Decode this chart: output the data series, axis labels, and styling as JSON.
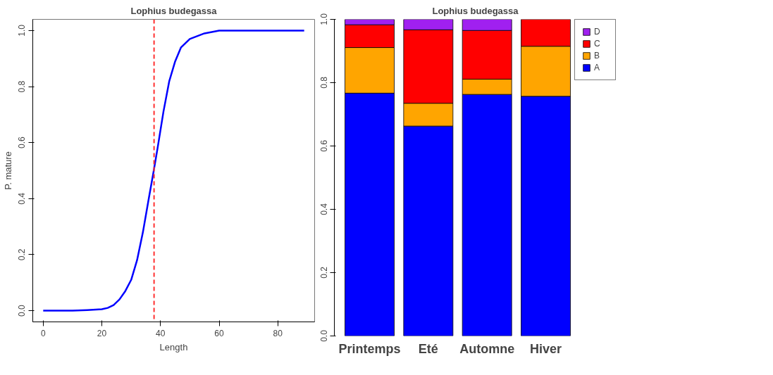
{
  "chart_data": [
    {
      "type": "line",
      "title": "Lophius budegassa",
      "xlabel": "Length",
      "ylabel": "P. mature",
      "x": [
        0,
        10,
        15,
        20,
        22,
        24,
        26,
        28,
        30,
        32,
        34,
        36,
        37.7,
        39,
        41,
        43,
        45,
        47,
        50,
        55,
        60,
        70,
        89
      ],
      "series": [
        {
          "color": "#0000ff",
          "values": [
            0,
            0,
            0.002,
            0.005,
            0.01,
            0.02,
            0.04,
            0.07,
            0.11,
            0.18,
            0.28,
            0.4,
            0.5,
            0.58,
            0.71,
            0.82,
            0.89,
            0.94,
            0.97,
            0.99,
            1.0,
            1.0,
            1.0
          ]
        }
      ],
      "xlim": [
        -3.56,
        92.56
      ],
      "ylim": [
        -0.04,
        1.04
      ],
      "xticks": [
        0,
        20,
        40,
        60,
        80
      ],
      "yticks": [
        {
          "value": 0,
          "label": "0.0"
        },
        {
          "value": 0.2,
          "label": "0.2"
        },
        {
          "value": 0.4,
          "label": "0.4"
        },
        {
          "value": 0.6,
          "label": "0.6"
        },
        {
          "value": 0.8,
          "label": "0.8"
        },
        {
          "value": 1,
          "label": "1.0"
        }
      ],
      "ref_lines": [
        {
          "axis": "x",
          "value": 37.8,
          "color": "#ff3030",
          "line_style": "dashed"
        }
      ],
      "grid": false,
      "line_style": "solid"
    },
    {
      "type": "bar",
      "title": "Lophius budegassa",
      "stacked": true,
      "categories": [
        "Printemps",
        "Eté",
        "Automne",
        "Hiver"
      ],
      "series": [
        {
          "name": "A",
          "color": "#0000ff",
          "values": [
            0.767,
            0.663,
            0.763,
            0.757
          ]
        },
        {
          "name": "B",
          "color": "#ffa500",
          "values": [
            0.144,
            0.072,
            0.048,
            0.158
          ]
        },
        {
          "name": "C",
          "color": "#ff0000",
          "values": [
            0.072,
            0.232,
            0.154,
            0.085
          ]
        },
        {
          "name": "D",
          "color": "#a020f0",
          "values": [
            0.017,
            0.033,
            0.035,
            null
          ]
        }
      ],
      "ylim": [
        0,
        1
      ],
      "yticks": [
        {
          "value": 0,
          "label": "0.0"
        },
        {
          "value": 0.2,
          "label": "0.2"
        },
        {
          "value": 0.4,
          "label": "0.4"
        },
        {
          "value": 0.6,
          "label": "0.6"
        },
        {
          "value": 0.8,
          "label": "0.8"
        },
        {
          "value": 1,
          "label": "1.0"
        }
      ],
      "grid": false,
      "legend": "top right"
    }
  ]
}
